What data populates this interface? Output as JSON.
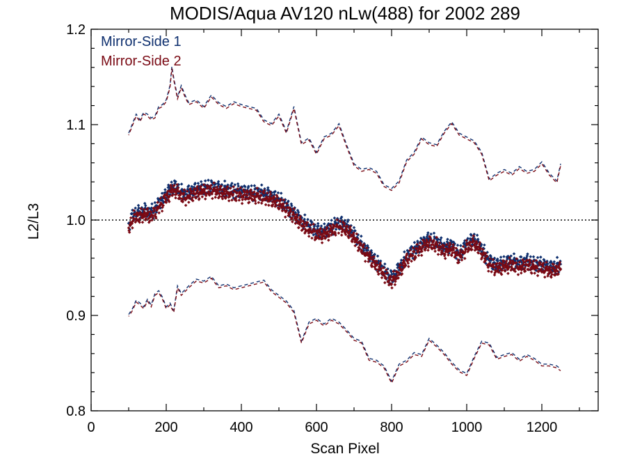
{
  "chart_data": {
    "type": "scatter",
    "title": "MODIS/Aqua AV120 nLw(488) for 2002 289",
    "xlabel": "Scan Pixel",
    "ylabel": "L2/L3",
    "xlim": [
      0,
      1350
    ],
    "ylim": [
      0.8,
      1.2
    ],
    "x_ticks": [
      0,
      200,
      400,
      600,
      800,
      1000,
      1200
    ],
    "x_tick_labels": [
      "0",
      "200",
      "400",
      "600",
      "800",
      "1000",
      "1200"
    ],
    "y_ticks": [
      0.8,
      0.9,
      1.0,
      1.1,
      1.2
    ],
    "y_tick_labels": [
      "0.8",
      "0.9",
      "1.0",
      "1.1",
      "1.2"
    ],
    "reference_line": {
      "y": 1.0,
      "style": "dotted"
    },
    "legend_position": "top-left",
    "grid": false,
    "series": [
      {
        "name": "Mirror-Side 1",
        "color": "#0e2f6e"
      },
      {
        "name": "Mirror-Side 2",
        "color": "#7a0a14"
      }
    ],
    "mean_ratio": {
      "x": [
        100,
        110,
        120,
        130,
        140,
        150,
        160,
        170,
        180,
        190,
        200,
        210,
        220,
        230,
        240,
        250,
        260,
        280,
        300,
        320,
        340,
        360,
        380,
        400,
        420,
        440,
        460,
        480,
        500,
        520,
        540,
        560,
        580,
        600,
        620,
        640,
        660,
        680,
        700,
        720,
        740,
        760,
        780,
        800,
        820,
        840,
        860,
        880,
        900,
        920,
        940,
        960,
        980,
        1000,
        1020,
        1040,
        1060,
        1080,
        1100,
        1120,
        1140,
        1160,
        1180,
        1200,
        1220,
        1240,
        1250
      ],
      "y": [
        0.993,
        1.002,
        1.006,
        1.005,
        1.008,
        1.007,
        1.006,
        1.01,
        1.015,
        1.02,
        1.025,
        1.03,
        1.034,
        1.031,
        1.027,
        1.025,
        1.027,
        1.03,
        1.032,
        1.033,
        1.031,
        1.03,
        1.029,
        1.028,
        1.027,
        1.027,
        1.026,
        1.023,
        1.02,
        1.013,
        1.006,
        0.997,
        0.992,
        0.987,
        0.986,
        0.991,
        0.995,
        0.992,
        0.983,
        0.972,
        0.963,
        0.954,
        0.945,
        0.937,
        0.947,
        0.96,
        0.967,
        0.973,
        0.978,
        0.975,
        0.969,
        0.972,
        0.962,
        0.973,
        0.978,
        0.968,
        0.955,
        0.951,
        0.953,
        0.955,
        0.952,
        0.955,
        0.952,
        0.952,
        0.948,
        0.95,
        0.95
      ]
    },
    "ms1_offset": 0.002,
    "ms2_offset": -0.002,
    "upper_bound": {
      "x": [
        100,
        110,
        120,
        130,
        140,
        150,
        160,
        170,
        180,
        190,
        200,
        210,
        215,
        220,
        230,
        240,
        250,
        260,
        280,
        300,
        320,
        340,
        360,
        380,
        400,
        420,
        440,
        460,
        480,
        500,
        520,
        540,
        560,
        580,
        600,
        620,
        640,
        660,
        680,
        700,
        720,
        740,
        760,
        780,
        800,
        820,
        840,
        860,
        880,
        900,
        920,
        940,
        960,
        980,
        1000,
        1020,
        1040,
        1060,
        1080,
        1100,
        1120,
        1140,
        1160,
        1180,
        1200,
        1220,
        1240,
        1250
      ],
      "y": [
        1.09,
        1.1,
        1.11,
        1.104,
        1.112,
        1.11,
        1.106,
        1.108,
        1.118,
        1.12,
        1.125,
        1.14,
        1.16,
        1.148,
        1.128,
        1.14,
        1.13,
        1.122,
        1.125,
        1.118,
        1.13,
        1.122,
        1.118,
        1.123,
        1.12,
        1.118,
        1.116,
        1.104,
        1.1,
        1.11,
        1.092,
        1.118,
        1.08,
        1.085,
        1.07,
        1.086,
        1.09,
        1.1,
        1.078,
        1.058,
        1.052,
        1.054,
        1.05,
        1.036,
        1.032,
        1.04,
        1.062,
        1.07,
        1.086,
        1.08,
        1.078,
        1.092,
        1.102,
        1.09,
        1.086,
        1.082,
        1.07,
        1.042,
        1.048,
        1.052,
        1.048,
        1.055,
        1.05,
        1.052,
        1.06,
        1.048,
        1.04,
        1.058
      ]
    },
    "lower_bound": {
      "x": [
        100,
        110,
        120,
        130,
        140,
        150,
        160,
        170,
        180,
        190,
        200,
        210,
        220,
        230,
        240,
        250,
        260,
        280,
        300,
        320,
        340,
        360,
        380,
        400,
        420,
        440,
        460,
        480,
        500,
        520,
        540,
        560,
        580,
        600,
        620,
        640,
        660,
        680,
        700,
        720,
        740,
        760,
        780,
        800,
        820,
        840,
        860,
        880,
        900,
        920,
        940,
        960,
        980,
        1000,
        1020,
        1040,
        1060,
        1080,
        1100,
        1120,
        1140,
        1160,
        1180,
        1200,
        1220,
        1240,
        1250
      ],
      "y": [
        0.9,
        0.906,
        0.915,
        0.912,
        0.908,
        0.916,
        0.91,
        0.922,
        0.925,
        0.918,
        0.908,
        0.912,
        0.904,
        0.93,
        0.922,
        0.926,
        0.93,
        0.937,
        0.935,
        0.94,
        0.93,
        0.932,
        0.928,
        0.93,
        0.932,
        0.934,
        0.936,
        0.926,
        0.92,
        0.914,
        0.904,
        0.872,
        0.892,
        0.896,
        0.89,
        0.896,
        0.892,
        0.884,
        0.875,
        0.872,
        0.854,
        0.852,
        0.846,
        0.83,
        0.848,
        0.852,
        0.86,
        0.858,
        0.875,
        0.868,
        0.86,
        0.85,
        0.842,
        0.838,
        0.856,
        0.872,
        0.87,
        0.855,
        0.858,
        0.86,
        0.853,
        0.858,
        0.854,
        0.848,
        0.848,
        0.846,
        0.843
      ]
    }
  }
}
